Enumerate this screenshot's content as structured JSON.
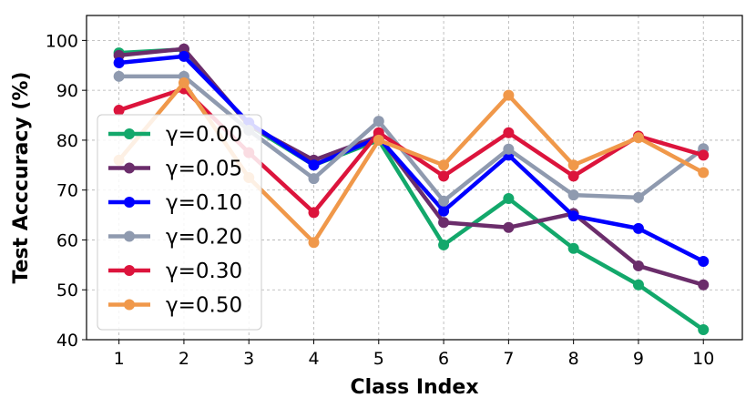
{
  "chart_data": {
    "type": "line",
    "title": "",
    "xlabel": "Class Index",
    "ylabel": "Test Acccuracy (%)",
    "x": [
      1,
      2,
      3,
      4,
      5,
      6,
      7,
      8,
      9,
      10
    ],
    "x_tick_labels": [
      "1",
      "2",
      "3",
      "4",
      "5",
      "6",
      "7",
      "8",
      "9",
      "10"
    ],
    "y_tick_labels": [
      "40",
      "50",
      "60",
      "70",
      "80",
      "90",
      "100"
    ],
    "xlim": [
      0.5,
      10.6
    ],
    "ylim": [
      40,
      105
    ],
    "grid": true,
    "legend_position": "left",
    "series": [
      {
        "name": "γ=0.00",
        "color": "#13a86b",
        "values": [
          97.5,
          98.2,
          83.0,
          75.0,
          80.0,
          59.0,
          68.3,
          58.3,
          51.0,
          42.0
        ]
      },
      {
        "name": "γ=0.05",
        "color": "#6b2d6b",
        "values": [
          97.0,
          98.3,
          83.0,
          76.0,
          80.8,
          63.5,
          62.5,
          65.3,
          54.8,
          51.0
        ]
      },
      {
        "name": "γ=0.10",
        "color": "#0000ff",
        "values": [
          95.5,
          96.8,
          83.5,
          75.0,
          80.5,
          65.8,
          77.0,
          64.8,
          62.3,
          55.7
        ]
      },
      {
        "name": "γ=0.20",
        "color": "#8f9aaf",
        "values": [
          92.8,
          92.8,
          82.0,
          72.3,
          83.8,
          67.8,
          78.2,
          69.0,
          68.5,
          78.3
        ]
      },
      {
        "name": "γ=0.30",
        "color": "#dc143c",
        "values": [
          86.0,
          90.3,
          77.5,
          65.5,
          81.5,
          72.8,
          81.5,
          72.8,
          80.8,
          77.0
        ]
      },
      {
        "name": "γ=0.50",
        "color": "#f0984a",
        "values": [
          76.0,
          91.5,
          72.5,
          59.5,
          80.0,
          75.0,
          89.0,
          75.0,
          80.5,
          73.5
        ]
      }
    ]
  }
}
